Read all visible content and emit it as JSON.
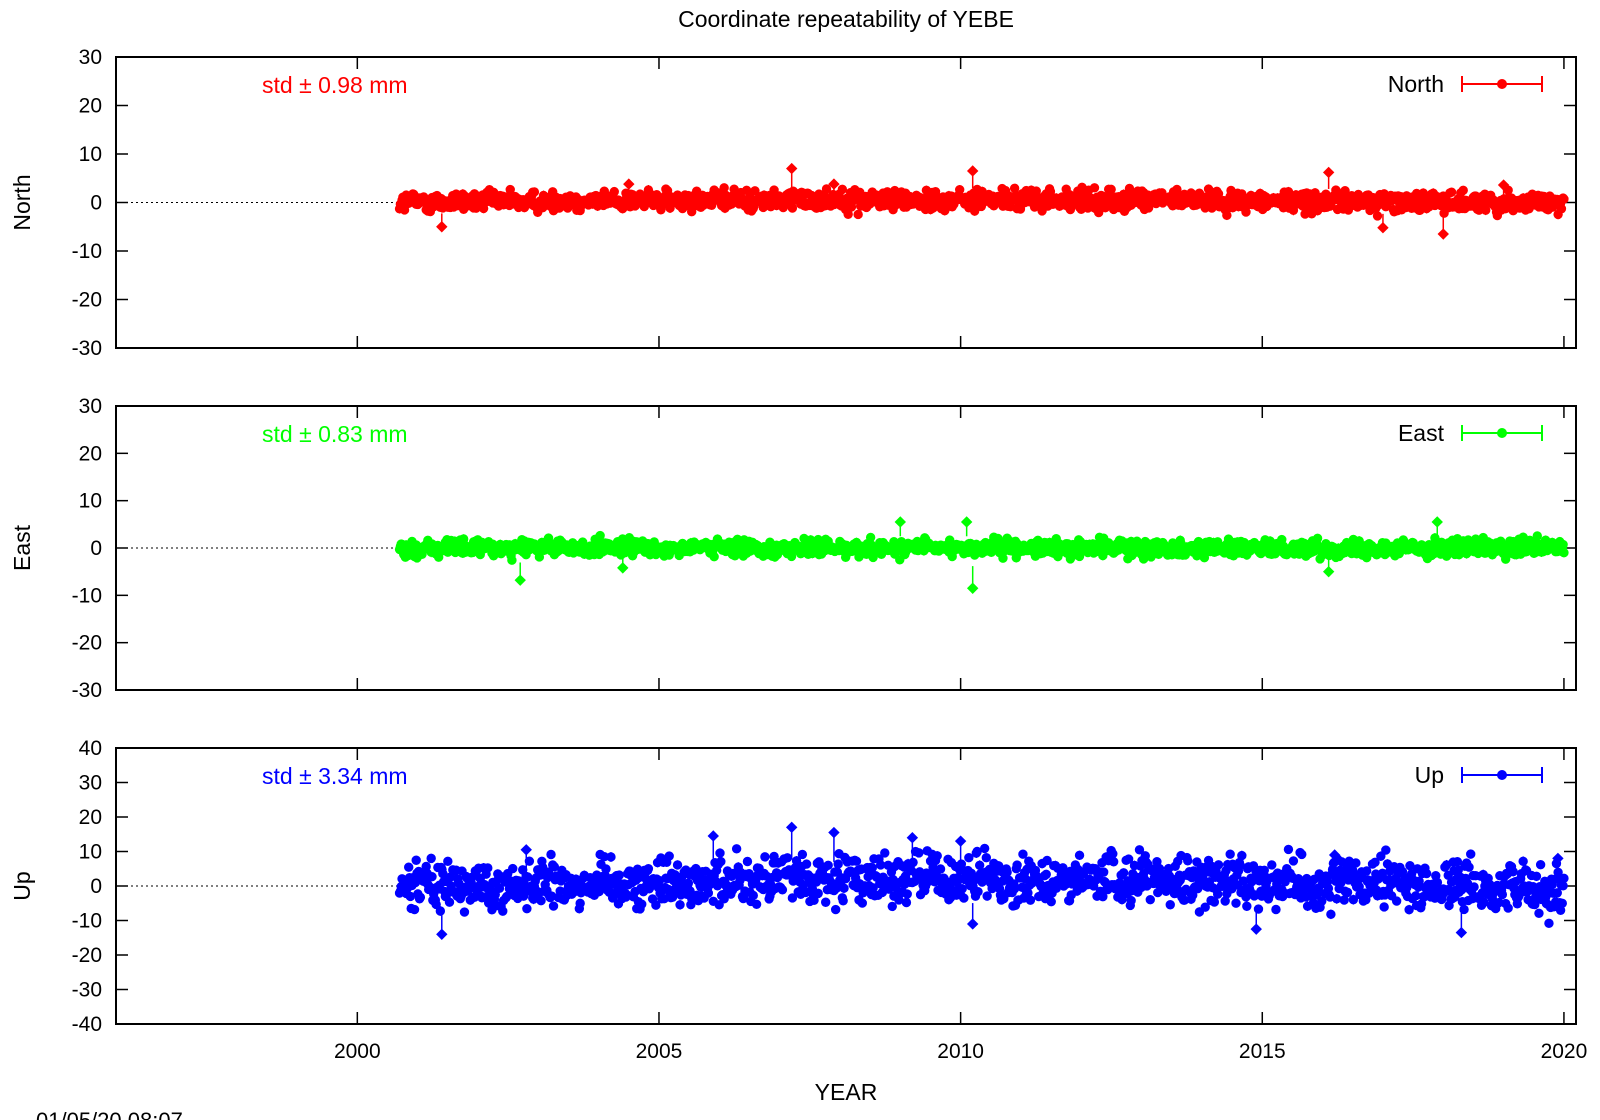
{
  "title": "Coordinate repeatability of YEBE",
  "timestamp": "01/05/20 08:07",
  "chart_data": {
    "type": "scatter",
    "title": "Coordinate repeatability of YEBE",
    "xlabel": "YEAR",
    "xlim": [
      1996,
      2020.2
    ],
    "x_ticks": [
      "2000",
      "2005",
      "2010",
      "2015",
      "2020"
    ],
    "x_tick_values": [
      2000,
      2005,
      2010,
      2015,
      2020
    ],
    "data_start_year": 2000.7,
    "data_end_year": 2020.0,
    "zero_line_style": "dotted",
    "grid": false,
    "legend_position": "top-right",
    "panels": [
      {
        "name": "North",
        "ylabel": "North",
        "color": "#ff0000",
        "ylim": [
          -30,
          30
        ],
        "y_ticks": [
          "30",
          "20",
          "10",
          "0",
          "-10",
          "-20",
          "-30"
        ],
        "y_tick_values": [
          30,
          20,
          10,
          0,
          -10,
          -20,
          -30
        ],
        "std_label": "std ± 0.98 mm",
        "std_mm": 0.98,
        "legend": "North",
        "outliers": [
          {
            "x": 2007.2,
            "y": 7.0
          },
          {
            "x": 2010.2,
            "y": 6.5
          },
          {
            "x": 2016.1,
            "y": 6.2
          },
          {
            "x": 2001.4,
            "y": -5.0
          },
          {
            "x": 2018.0,
            "y": -6.5
          },
          {
            "x": 2017.0,
            "y": -5.2
          },
          {
            "x": 2004.5,
            "y": 3.8
          },
          {
            "x": 2007.9,
            "y": 3.8
          },
          {
            "x": 2019.0,
            "y": 3.6
          }
        ]
      },
      {
        "name": "East",
        "ylabel": "East",
        "color": "#00ff00",
        "ylim": [
          -30,
          30
        ],
        "y_ticks": [
          "30",
          "20",
          "10",
          "0",
          "-10",
          "-20",
          "-30"
        ],
        "y_tick_values": [
          30,
          20,
          10,
          0,
          -10,
          -20,
          -30
        ],
        "std_label": "std ± 0.83 mm",
        "std_mm": 0.83,
        "legend": "East",
        "outliers": [
          {
            "x": 2002.7,
            "y": -6.8
          },
          {
            "x": 2010.2,
            "y": -8.5
          },
          {
            "x": 2009.0,
            "y": 5.5
          },
          {
            "x": 2010.1,
            "y": 5.5
          },
          {
            "x": 2017.9,
            "y": 5.5
          },
          {
            "x": 2004.4,
            "y": -4.2
          },
          {
            "x": 2016.1,
            "y": -5.0
          }
        ]
      },
      {
        "name": "Up",
        "ylabel": "Up",
        "color": "#0000ff",
        "ylim": [
          -40,
          40
        ],
        "y_ticks": [
          "40",
          "30",
          "20",
          "10",
          "0",
          "-10",
          "-20",
          "-30",
          "-40"
        ],
        "y_tick_values": [
          40,
          30,
          20,
          10,
          0,
          -10,
          -20,
          -30,
          -40
        ],
        "std_label": "std ± 3.34 mm",
        "std_mm": 3.34,
        "legend": "Up",
        "outliers": [
          {
            "x": 2007.2,
            "y": 17.0
          },
          {
            "x": 2007.9,
            "y": 15.5
          },
          {
            "x": 2005.9,
            "y": 14.5
          },
          {
            "x": 2009.2,
            "y": 14.0
          },
          {
            "x": 2010.0,
            "y": 13.0
          },
          {
            "x": 2001.4,
            "y": -14.0
          },
          {
            "x": 2018.3,
            "y": -13.5
          },
          {
            "x": 2014.9,
            "y": -12.5
          },
          {
            "x": 2010.2,
            "y": -11.0
          },
          {
            "x": 2002.8,
            "y": 10.5
          },
          {
            "x": 2016.2,
            "y": 9.0
          },
          {
            "x": 2019.9,
            "y": 8.0
          }
        ]
      }
    ]
  }
}
